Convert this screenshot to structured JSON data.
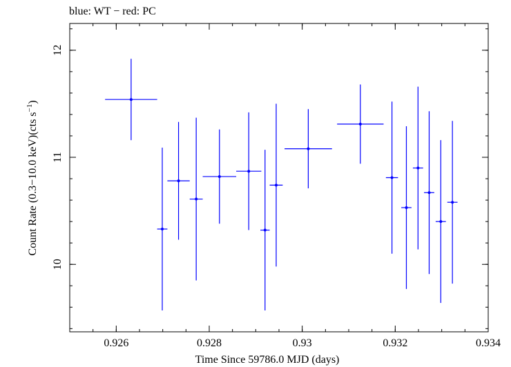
{
  "chart_data": {
    "type": "scatter",
    "title": "blue: WT − red: PC",
    "xlabel": "Time Since 59786.0 MJD (days)",
    "ylabel_main": "Count Rate (0.3−10.0 keV)(cts s",
    "ylabel_sup": "−1",
    "ylabel_end": ")",
    "xlim": [
      0.925,
      0.934
    ],
    "ylim": [
      9.37,
      12.25
    ],
    "xticks": [
      {
        "value": 0.926,
        "label": "0.926"
      },
      {
        "value": 0.928,
        "label": "0.928"
      },
      {
        "value": 0.93,
        "label": "0.93"
      },
      {
        "value": 0.932,
        "label": "0.932"
      },
      {
        "value": 0.934,
        "label": "0.934"
      }
    ],
    "yticks": [
      {
        "value": 10,
        "label": "10"
      },
      {
        "value": 11,
        "label": "11"
      },
      {
        "value": 12,
        "label": "12"
      }
    ],
    "series": [
      {
        "color": "#0000ff",
        "points": [
          {
            "x": 0.92632,
            "xerr": 0.00056,
            "y": 11.54,
            "yerr": 0.38
          },
          {
            "x": 0.92699,
            "xerr": 0.00011,
            "y": 10.33,
            "yerr": 0.76
          },
          {
            "x": 0.92734,
            "xerr": 0.00024,
            "y": 10.78,
            "yerr": 0.55
          },
          {
            "x": 0.92772,
            "xerr": 0.00014,
            "y": 10.61,
            "yerr": 0.76
          },
          {
            "x": 0.92822,
            "xerr": 0.00036,
            "y": 10.82,
            "yerr": 0.44
          },
          {
            "x": 0.92885,
            "xerr": 0.00027,
            "y": 10.87,
            "yerr": 0.55
          },
          {
            "x": 0.9292,
            "xerr": 0.0001,
            "y": 10.32,
            "yerr": 0.75
          },
          {
            "x": 0.92944,
            "xerr": 0.00014,
            "y": 10.74,
            "yerr": 0.76
          },
          {
            "x": 0.93013,
            "xerr": 0.00051,
            "y": 11.08,
            "yerr": 0.37
          },
          {
            "x": 0.93125,
            "xerr": 0.0005,
            "y": 11.31,
            "yerr": 0.37
          },
          {
            "x": 0.93193,
            "xerr": 0.00013,
            "y": 10.81,
            "yerr": 0.71
          },
          {
            "x": 0.93224,
            "xerr": 0.00011,
            "y": 10.53,
            "yerr": 0.76
          },
          {
            "x": 0.93249,
            "xerr": 0.00011,
            "y": 10.9,
            "yerr": 0.76
          },
          {
            "x": 0.93273,
            "xerr": 0.00011,
            "y": 10.67,
            "yerr": 0.76
          },
          {
            "x": 0.93298,
            "xerr": 0.00011,
            "y": 10.4,
            "yerr": 0.76
          },
          {
            "x": 0.93323,
            "xerr": 0.00011,
            "y": 10.58,
            "yerr": 0.76
          }
        ]
      }
    ]
  }
}
